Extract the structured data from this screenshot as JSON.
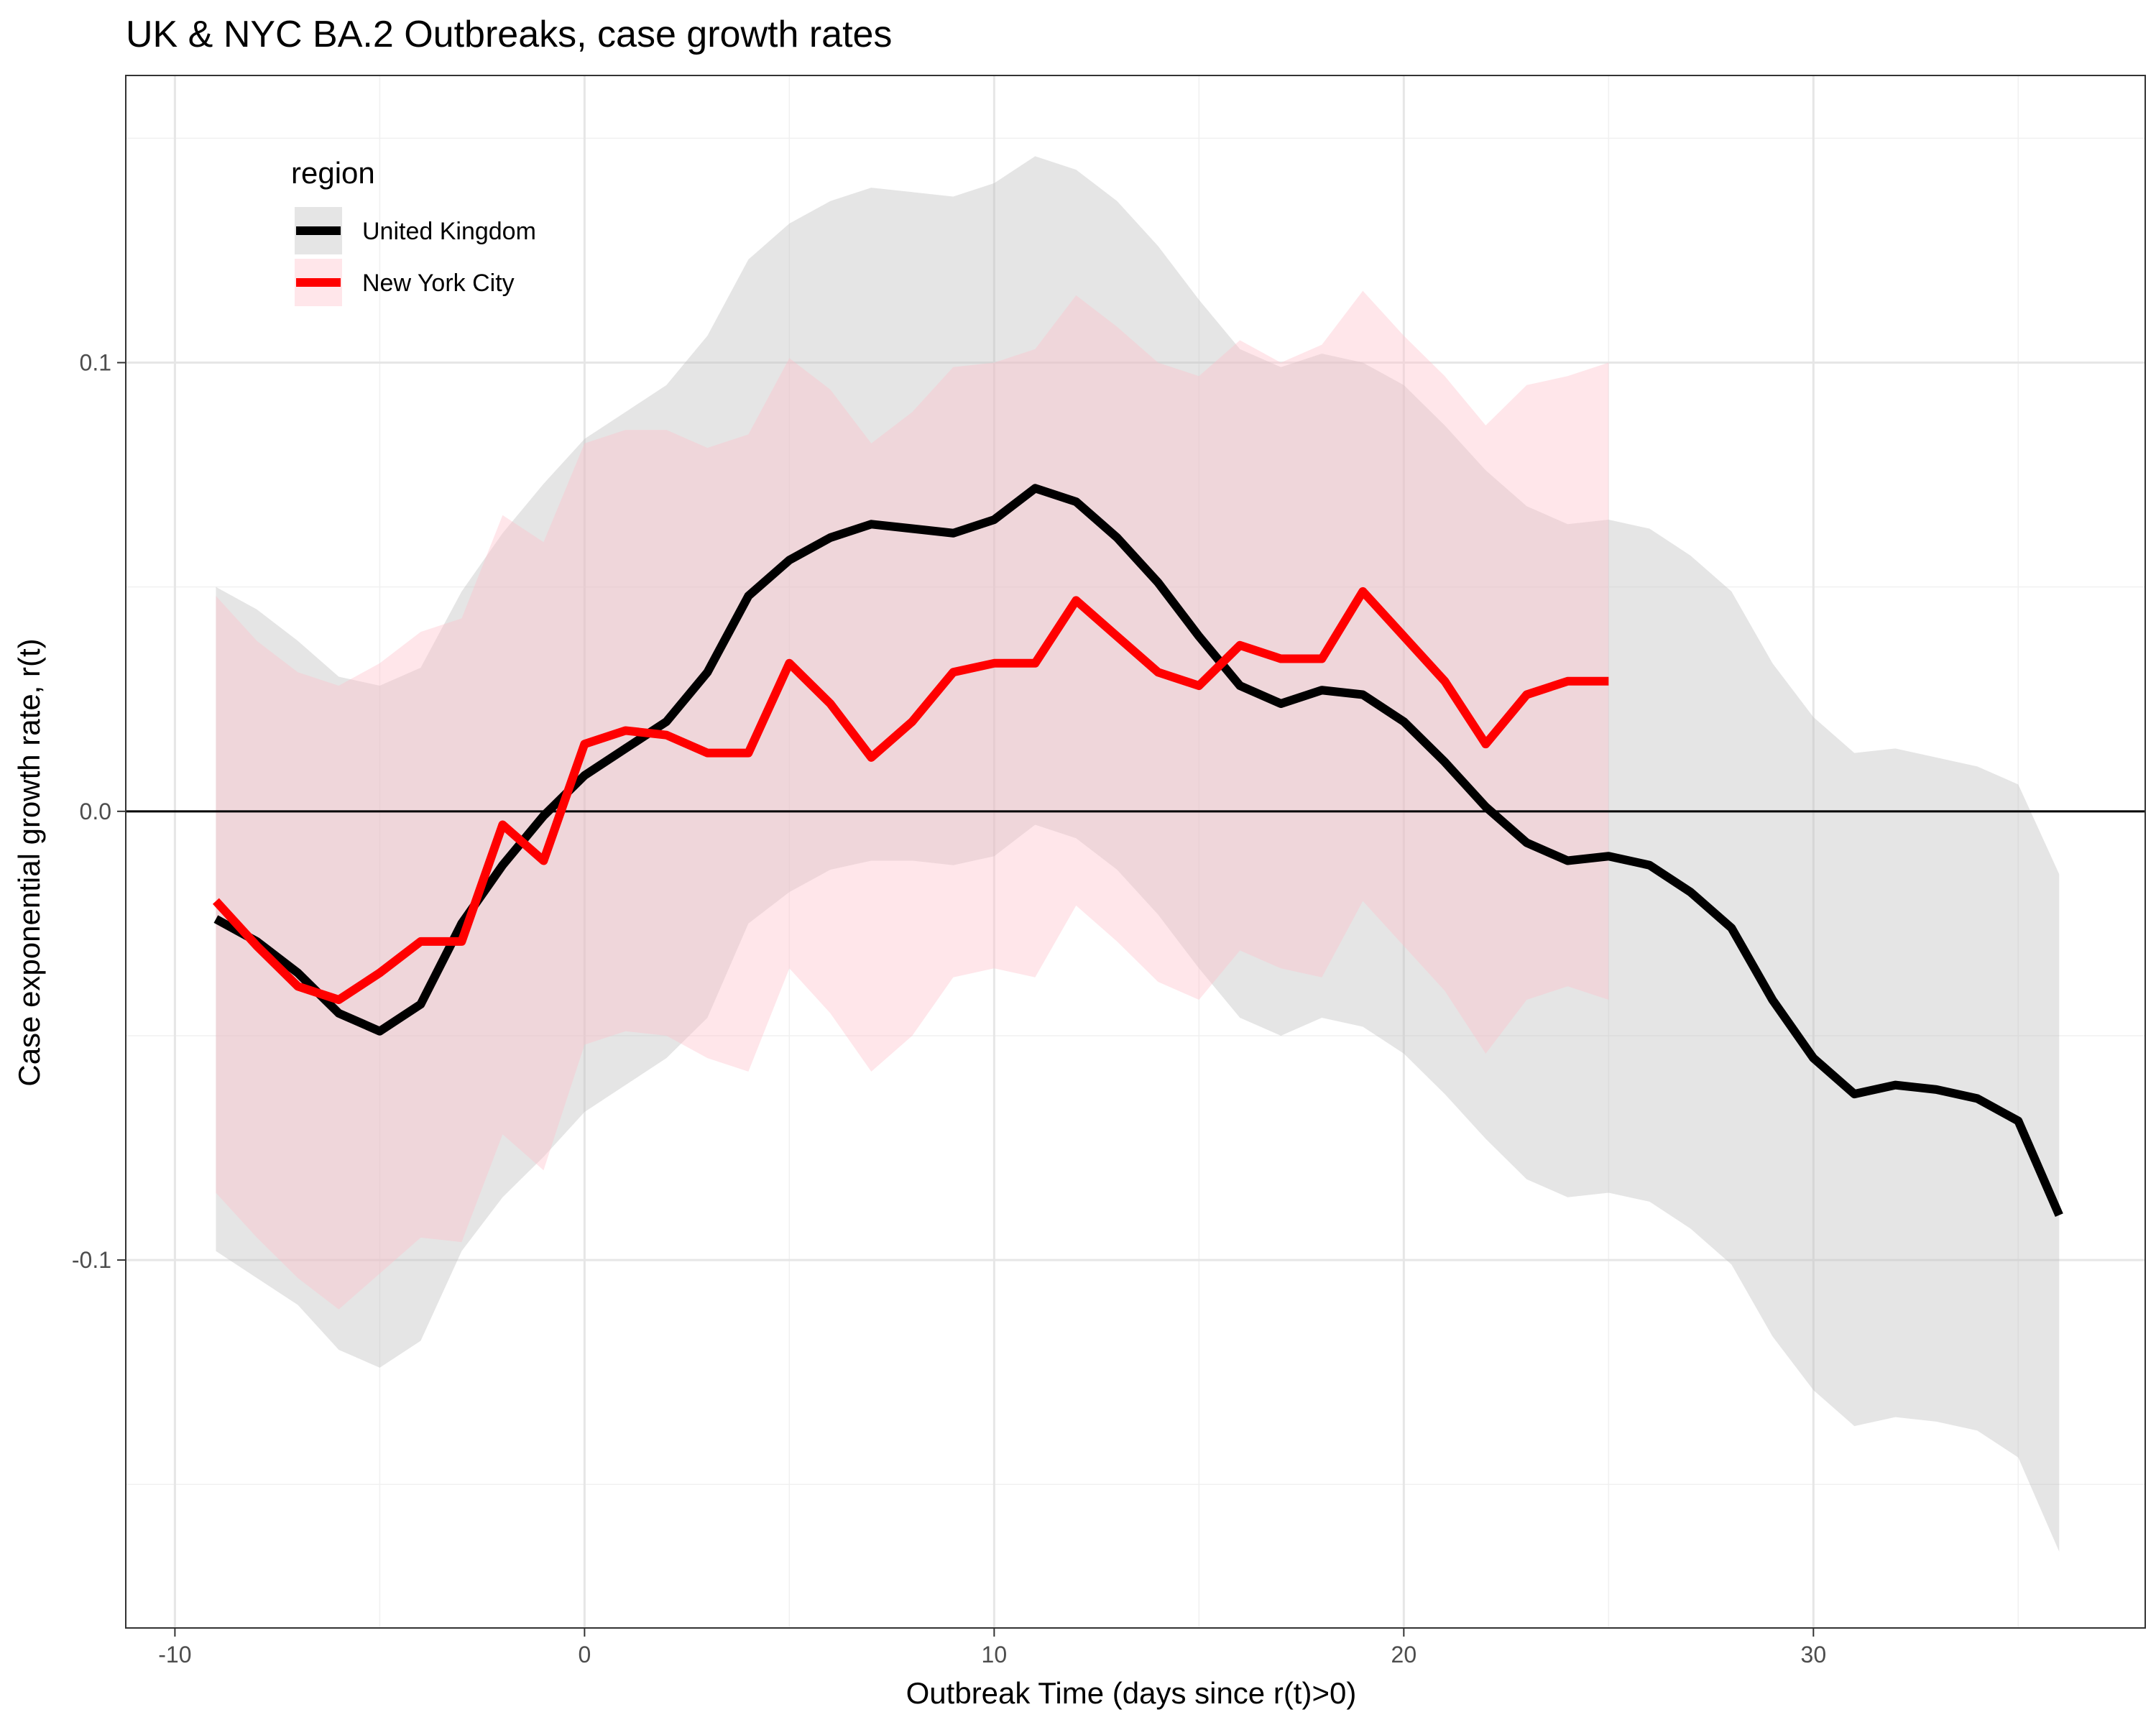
{
  "chart_data": {
    "type": "line",
    "title": "UK & NYC BA.2 Outbreaks, case growth rates",
    "xlabel": "Outbreak Time (days since r(t)>0)",
    "ylabel": "Case exponential growth rate, r(t)",
    "xlim": [
      -11.2,
      38.1
    ],
    "ylim": [
      -0.182,
      0.164
    ],
    "x_ticks": [
      -10,
      0,
      10,
      20,
      30
    ],
    "x_tick_labels": [
      "-10",
      "0",
      "10",
      "20",
      "30"
    ],
    "y_ticks": [
      -0.1,
      0.0,
      0.1
    ],
    "y_tick_labels": [
      "-0.1",
      "0.0",
      "0.1"
    ],
    "x_minor_ticks": [
      -5,
      5,
      15,
      25,
      35
    ],
    "y_minor_ticks": [
      -0.15,
      -0.05,
      0.05,
      0.15
    ],
    "grid": true,
    "reference_line_y": 0,
    "legend": {
      "title": "region",
      "position": "top-left",
      "entries": [
        "United Kingdom",
        "New York City"
      ]
    },
    "series": [
      {
        "name": "United Kingdom",
        "color": "#000000",
        "ribbon_color": "#bfbfbf",
        "x": [
          -9,
          -8,
          -7,
          -6,
          -5,
          -4,
          -3,
          -2,
          -1,
          0,
          1,
          2,
          3,
          4,
          5,
          6,
          7,
          8,
          9,
          10,
          11,
          12,
          13,
          14,
          15,
          16,
          17,
          18,
          19,
          20,
          21,
          22,
          23,
          24,
          25,
          26,
          27,
          28,
          29,
          30,
          31,
          32,
          33,
          34,
          35,
          36
        ],
        "y": [
          -0.024,
          -0.029,
          -0.036,
          -0.045,
          -0.049,
          -0.043,
          -0.025,
          -0.012,
          -0.001,
          0.008,
          0.014,
          0.02,
          0.031,
          0.048,
          0.056,
          0.061,
          0.064,
          0.063,
          0.062,
          0.065,
          0.072,
          0.069,
          0.061,
          0.051,
          0.039,
          0.028,
          0.024,
          0.027,
          0.026,
          0.02,
          0.011,
          0.001,
          -0.007,
          -0.011,
          -0.01,
          -0.012,
          -0.018,
          -0.026,
          -0.042,
          -0.055,
          -0.063,
          -0.061,
          -0.062,
          -0.064,
          -0.069,
          -0.09
        ],
        "lower": [
          -0.098,
          -0.104,
          -0.11,
          -0.12,
          -0.124,
          -0.118,
          -0.098,
          -0.086,
          -0.077,
          -0.067,
          -0.061,
          -0.055,
          -0.046,
          -0.025,
          -0.018,
          -0.013,
          -0.011,
          -0.011,
          -0.012,
          -0.01,
          -0.003,
          -0.006,
          -0.013,
          -0.023,
          -0.035,
          -0.046,
          -0.05,
          -0.046,
          -0.048,
          -0.054,
          -0.063,
          -0.073,
          -0.082,
          -0.086,
          -0.085,
          -0.087,
          -0.093,
          -0.101,
          -0.117,
          -0.129,
          -0.137,
          -0.135,
          -0.136,
          -0.138,
          -0.144,
          -0.165
        ],
        "upper": [
          0.05,
          0.045,
          0.038,
          0.03,
          0.028,
          0.032,
          0.049,
          0.062,
          0.073,
          0.083,
          0.089,
          0.095,
          0.106,
          0.123,
          0.131,
          0.136,
          0.139,
          0.138,
          0.137,
          0.14,
          0.146,
          0.143,
          0.136,
          0.126,
          0.114,
          0.103,
          0.099,
          0.102,
          0.1,
          0.095,
          0.086,
          0.076,
          0.068,
          0.064,
          0.065,
          0.063,
          0.057,
          0.049,
          0.033,
          0.021,
          0.013,
          0.014,
          0.012,
          0.01,
          0.006,
          -0.014
        ]
      },
      {
        "name": "New York City",
        "color": "#ff0000",
        "ribbon_color": "#ffc0cb",
        "x": [
          -9,
          -8,
          -7,
          -6,
          -5,
          -4,
          -3,
          -2,
          -1,
          0,
          1,
          2,
          3,
          4,
          5,
          6,
          7,
          8,
          9,
          10,
          11,
          12,
          13,
          14,
          15,
          16,
          17,
          18,
          19,
          20,
          21,
          22,
          23,
          24,
          25
        ],
        "y": [
          -0.02,
          -0.03,
          -0.039,
          -0.042,
          -0.036,
          -0.029,
          -0.029,
          -0.003,
          -0.011,
          0.015,
          0.018,
          0.017,
          0.013,
          0.013,
          0.033,
          0.024,
          0.012,
          0.02,
          0.031,
          0.033,
          0.033,
          0.047,
          0.039,
          0.031,
          0.028,
          0.037,
          0.034,
          0.034,
          0.049,
          0.039,
          0.029,
          0.015,
          0.026,
          0.029,
          0.029
        ],
        "lower": [
          -0.085,
          -0.095,
          -0.104,
          -0.111,
          -0.103,
          -0.095,
          -0.096,
          -0.072,
          -0.08,
          -0.052,
          -0.049,
          -0.05,
          -0.055,
          -0.058,
          -0.035,
          -0.045,
          -0.058,
          -0.05,
          -0.037,
          -0.035,
          -0.037,
          -0.021,
          -0.029,
          -0.038,
          -0.042,
          -0.031,
          -0.035,
          -0.037,
          -0.02,
          -0.03,
          -0.04,
          -0.054,
          -0.042,
          -0.039,
          -0.042
        ],
        "upper": [
          0.048,
          0.038,
          0.031,
          0.028,
          0.033,
          0.04,
          0.043,
          0.066,
          0.06,
          0.082,
          0.085,
          0.085,
          0.081,
          0.084,
          0.101,
          0.094,
          0.082,
          0.089,
          0.099,
          0.1,
          0.103,
          0.115,
          0.108,
          0.1,
          0.097,
          0.105,
          0.1,
          0.104,
          0.116,
          0.106,
          0.097,
          0.086,
          0.095,
          0.097,
          0.1
        ]
      }
    ]
  }
}
